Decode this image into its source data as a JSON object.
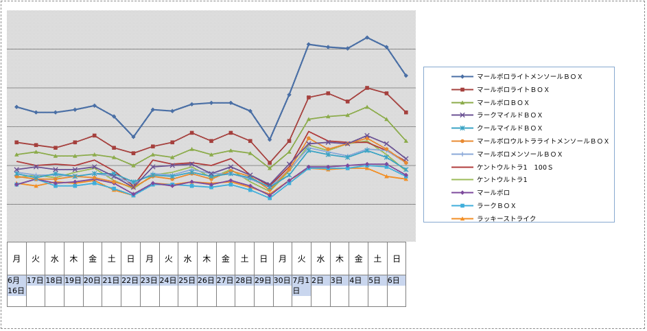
{
  "chart_data": {
    "type": "line",
    "title": "",
    "xlabel": "",
    "ylabel": "",
    "grid": true,
    "legend_position": "right",
    "ylim": [
      0,
      170
    ],
    "categories_day": [
      "月",
      "火",
      "水",
      "木",
      "金",
      "土",
      "日",
      "月",
      "火",
      "水",
      "木",
      "金",
      "土",
      "日",
      "月",
      "火",
      "水",
      "木",
      "金",
      "土",
      "日"
    ],
    "categories_date": [
      "6月16日",
      "17日",
      "18日",
      "19日",
      "20日",
      "21日",
      "22日",
      "23日",
      "24日",
      "25日",
      "26日",
      "27日",
      "28日",
      "29日",
      "30日",
      "7月1日",
      "2日",
      "3日",
      "4日",
      "5日",
      "6日"
    ],
    "series": [
      {
        "name": "マールボロライトメンソールＢＯＸ",
        "color": "#4a6fa5",
        "marker": "diamond",
        "values": [
          99,
          95,
          95,
          97,
          100,
          92,
          77,
          97,
          96,
          101,
          102,
          102,
          96,
          75,
          108,
          145,
          143,
          142,
          150,
          143,
          122
        ]
      },
      {
        "name": "マールボロライトＢＯＸ",
        "color": "#a5403d",
        "marker": "square",
        "values": [
          73,
          71,
          69,
          73,
          78,
          69,
          65,
          70,
          73,
          80,
          74,
          80,
          74,
          58,
          74,
          106,
          109,
          103,
          113,
          109,
          95
        ]
      },
      {
        "name": "マールボロＢＯＸ",
        "color": "#8bab4a",
        "marker": "triangle",
        "values": [
          64,
          66,
          63,
          63,
          64,
          62,
          56,
          64,
          62,
          68,
          64,
          67,
          65,
          54,
          66,
          90,
          92,
          93,
          99,
          90,
          74
        ]
      },
      {
        "name": "ラークマイルドＢＯＸ",
        "color": "#6b5294",
        "marker": "x",
        "values": [
          53,
          55,
          53,
          53,
          55,
          48,
          40,
          55,
          56,
          57,
          50,
          55,
          49,
          42,
          57,
          72,
          73,
          72,
          78,
          72,
          61
        ]
      },
      {
        "name": "クールマイルドＢＯＸ",
        "color": "#3aa3c4",
        "marker": "asterisk",
        "values": [
          50,
          47,
          50,
          48,
          50,
          50,
          44,
          49,
          48,
          51,
          48,
          50,
          47,
          40,
          49,
          67,
          64,
          62,
          67,
          62,
          53
        ]
      },
      {
        "name": "マールボロウルトラライトメンソールＢＯＸ",
        "color": "#e88a32",
        "marker": "circle",
        "values": [
          48,
          46,
          46,
          48,
          47,
          44,
          40,
          48,
          46,
          50,
          46,
          52,
          48,
          38,
          53,
          76,
          68,
          72,
          76,
          68,
          58
        ]
      },
      {
        "name": "マールボロメンソールＢＯＸ",
        "color": "#8aa8d8",
        "marker": "plus",
        "values": [
          51,
          49,
          49,
          48,
          50,
          48,
          43,
          50,
          49,
          53,
          50,
          50,
          46,
          40,
          53,
          69,
          66,
          63,
          68,
          67,
          58
        ]
      },
      {
        "name": "ケントウルトラ1　100Ｓ",
        "color": "#b03b3b",
        "marker": "none",
        "values": [
          59,
          56,
          57,
          56,
          60,
          52,
          41,
          60,
          57,
          58,
          56,
          61,
          49,
          41,
          55,
          81,
          74,
          73,
          73,
          67,
          59
        ]
      },
      {
        "name": "ケントウルトラ1",
        "color": "#9bbb59",
        "marker": "none",
        "values": [
          47,
          49,
          47,
          51,
          54,
          45,
          39,
          49,
          51,
          55,
          47,
          53,
          44,
          37,
          52,
          71,
          67,
          72,
          74,
          64,
          52
        ]
      },
      {
        "name": "マールボロ",
        "color": "#7d4a9c",
        "marker": "diamond",
        "values": [
          42,
          46,
          43,
          44,
          46,
          43,
          35,
          43,
          41,
          44,
          42,
          45,
          41,
          34,
          45,
          55,
          55,
          56,
          57,
          57,
          49
        ]
      },
      {
        "name": "ラークＢＯＸ",
        "color": "#3faedb",
        "marker": "square",
        "values": [
          42,
          46,
          41,
          41,
          43,
          39,
          34,
          42,
          42,
          41,
          40,
          42,
          38,
          32,
          43,
          54,
          54,
          54,
          56,
          55,
          48
        ]
      },
      {
        "name": "ラッキーストライク",
        "color": "#f28e24",
        "marker": "triangle",
        "values": [
          43,
          41,
          44,
          43,
          45,
          38,
          34,
          43,
          42,
          44,
          43,
          44,
          40,
          35,
          45,
          54,
          53,
          54,
          54,
          48,
          46
        ]
      }
    ]
  }
}
